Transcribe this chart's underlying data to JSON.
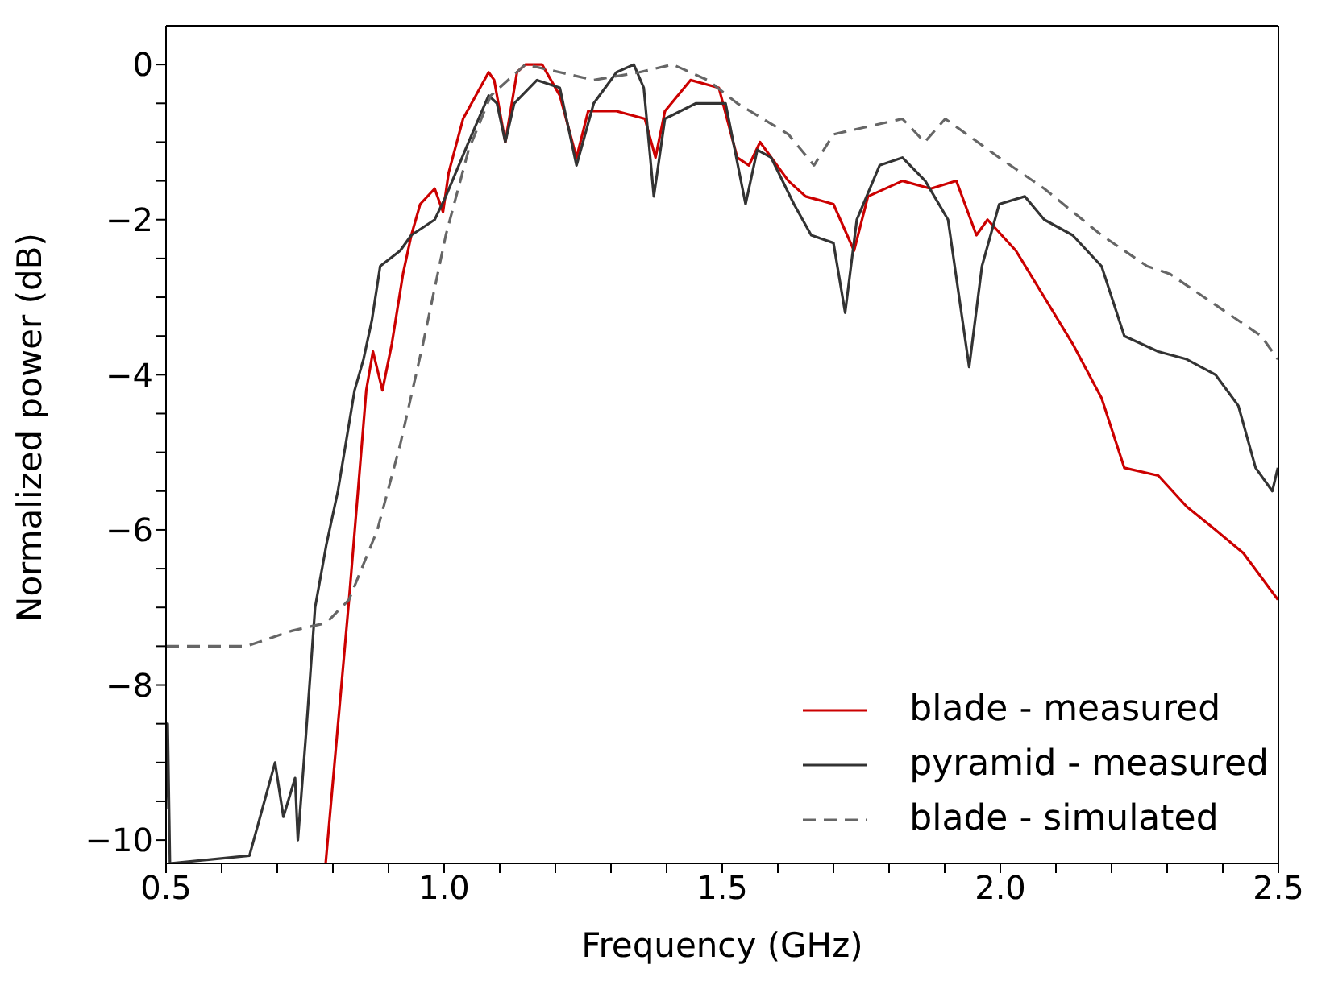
{
  "chart_data": {
    "type": "line",
    "xlabel": "Frequency (GHz)",
    "ylabel": "Normalized power (dB)",
    "xlim": [
      0.5,
      2.5
    ],
    "ylim": [
      -10.3,
      0.5
    ],
    "xticks": [
      {
        "value": 0.5,
        "label": "0.5"
      },
      {
        "value": 0.6,
        "label": null
      },
      {
        "value": 0.7,
        "label": null
      },
      {
        "value": 0.8,
        "label": null
      },
      {
        "value": 0.9,
        "label": null
      },
      {
        "value": 1.0,
        "label": "1.0"
      },
      {
        "value": 1.1,
        "label": null
      },
      {
        "value": 1.2,
        "label": null
      },
      {
        "value": 1.3,
        "label": null
      },
      {
        "value": 1.4,
        "label": null
      },
      {
        "value": 1.5,
        "label": "1.5"
      },
      {
        "value": 1.6,
        "label": null
      },
      {
        "value": 1.7,
        "label": null
      },
      {
        "value": 1.8,
        "label": null
      },
      {
        "value": 1.9,
        "label": null
      },
      {
        "value": 2.0,
        "label": "2.0"
      },
      {
        "value": 2.1,
        "label": null
      },
      {
        "value": 2.2,
        "label": null
      },
      {
        "value": 2.3,
        "label": null
      },
      {
        "value": 2.4,
        "label": null
      },
      {
        "value": 2.5,
        "label": "2.5"
      }
    ],
    "yticks": [
      -10,
      {
        "value": -9.5,
        "label": null
      },
      {
        "value": -9,
        "label": null
      },
      {
        "value": -8.5,
        "label": null
      },
      -8,
      {
        "value": -7.5,
        "label": null
      },
      {
        "value": -7,
        "label": null
      },
      {
        "value": -6.5,
        "label": null
      },
      -6,
      {
        "value": -5.5,
        "label": null
      },
      {
        "value": -5,
        "label": null
      },
      {
        "value": -4.5,
        "label": null
      },
      -4,
      {
        "value": -3.5,
        "label": null
      },
      {
        "value": -3,
        "label": null
      },
      {
        "value": -2.5,
        "label": null
      },
      -2,
      {
        "value": -1.5,
        "label": null
      },
      {
        "value": -1,
        "label": null
      },
      {
        "value": -0.5,
        "label": null
      },
      0
    ],
    "legend": "bottom right",
    "marker": "none",
    "series": [
      {
        "name": "blade - measured",
        "color": "#cc0000",
        "line_style": "solid",
        "x": [
          0.787,
          0.829,
          0.86,
          0.872,
          0.889,
          0.906,
          0.926,
          0.941,
          0.957,
          0.983,
          0.998,
          1.008,
          1.034,
          1.08,
          1.09,
          1.11,
          1.131,
          1.146,
          1.176,
          1.208,
          1.238,
          1.259,
          1.31,
          1.361,
          1.38,
          1.397,
          1.443,
          1.494,
          1.527,
          1.548,
          1.568,
          1.619,
          1.65,
          1.7,
          1.737,
          1.762,
          1.824,
          1.875,
          1.921,
          1.957,
          1.977,
          2.028,
          2.079,
          2.13,
          2.182,
          2.223,
          2.284,
          2.335,
          2.387,
          2.437,
          2.499
        ],
        "values": [
          -10.3,
          -6.9,
          -4.2,
          -3.7,
          -4.2,
          -3.6,
          -2.7,
          -2.2,
          -1.8,
          -1.6,
          -1.9,
          -1.4,
          -0.7,
          -0.1,
          -0.2,
          -1.0,
          -0.1,
          0,
          0,
          -0.4,
          -1.2,
          -0.6,
          -0.6,
          -0.7,
          -1.2,
          -0.6,
          -0.2,
          -0.3,
          -1.2,
          -1.3,
          -1.0,
          -1.5,
          -1.7,
          -1.8,
          -2.4,
          -1.7,
          -1.5,
          -1.6,
          -1.5,
          -2.2,
          -2.0,
          -2.4,
          -3.0,
          -3.6,
          -4.3,
          -5.2,
          -5.3,
          -5.7,
          -6.0,
          -6.3,
          -6.9
        ]
      },
      {
        "name": "pyramid - measured",
        "color": "#333333",
        "line_style": "solid",
        "x": [
          0.5,
          0.503,
          0.507,
          0.65,
          0.696,
          0.711,
          0.732,
          0.737,
          0.752,
          0.768,
          0.788,
          0.809,
          0.839,
          0.855,
          0.87,
          0.885,
          0.921,
          0.941,
          0.983,
          1.003,
          1.044,
          1.08,
          1.095,
          1.11,
          1.126,
          1.167,
          1.208,
          1.238,
          1.269,
          1.31,
          1.341,
          1.359,
          1.377,
          1.397,
          1.453,
          1.506,
          1.542,
          1.563,
          1.588,
          1.629,
          1.66,
          1.7,
          1.721,
          1.742,
          1.783,
          1.824,
          1.865,
          1.906,
          1.944,
          1.967,
          1.998,
          2.044,
          2.079,
          2.13,
          2.182,
          2.223,
          2.284,
          2.335,
          2.387,
          2.428,
          2.459,
          2.489,
          2.499
        ],
        "values": [
          -9.6,
          -8.5,
          -10.3,
          -10.2,
          -9.0,
          -9.7,
          -9.2,
          -10.0,
          -8.6,
          -7.0,
          -6.2,
          -5.5,
          -4.2,
          -3.8,
          -3.3,
          -2.6,
          -2.4,
          -2.2,
          -2.0,
          -1.7,
          -1.0,
          -0.4,
          -0.5,
          -1.0,
          -0.5,
          -0.2,
          -0.3,
          -1.3,
          -0.5,
          -0.1,
          0,
          -0.3,
          -1.7,
          -0.7,
          -0.5,
          -0.5,
          -1.8,
          -1.1,
          -1.2,
          -1.8,
          -2.2,
          -2.3,
          -3.2,
          -2.0,
          -1.3,
          -1.2,
          -1.5,
          -2.0,
          -3.9,
          -2.6,
          -1.8,
          -1.7,
          -2.0,
          -2.2,
          -2.6,
          -3.5,
          -3.7,
          -3.8,
          -4.0,
          -4.4,
          -5.2,
          -5.5,
          -5.2
        ]
      },
      {
        "name": "blade - simulated",
        "color": "#666666",
        "line_style": "dashed",
        "x": [
          0.5,
          0.645,
          0.727,
          0.788,
          0.829,
          0.88,
          0.921,
          0.962,
          1.003,
          1.044,
          1.084,
          1.146,
          1.208,
          1.269,
          1.351,
          1.411,
          1.474,
          1.527,
          1.619,
          1.665,
          1.7,
          1.824,
          1.864,
          1.901,
          1.998,
          2.079,
          2.182,
          2.264,
          2.305,
          2.387,
          2.469,
          2.499
        ],
        "values": [
          -7.5,
          -7.5,
          -7.3,
          -7.2,
          -6.9,
          -6.0,
          -4.9,
          -3.6,
          -2.2,
          -1.1,
          -0.4,
          0,
          -0.1,
          -0.2,
          -0.1,
          0,
          -0.2,
          -0.5,
          -0.9,
          -1.3,
          -0.9,
          -0.7,
          -1.0,
          -0.7,
          -1.2,
          -1.6,
          -2.2,
          -2.6,
          -2.7,
          -3.1,
          -3.5,
          -3.8
        ]
      }
    ]
  }
}
